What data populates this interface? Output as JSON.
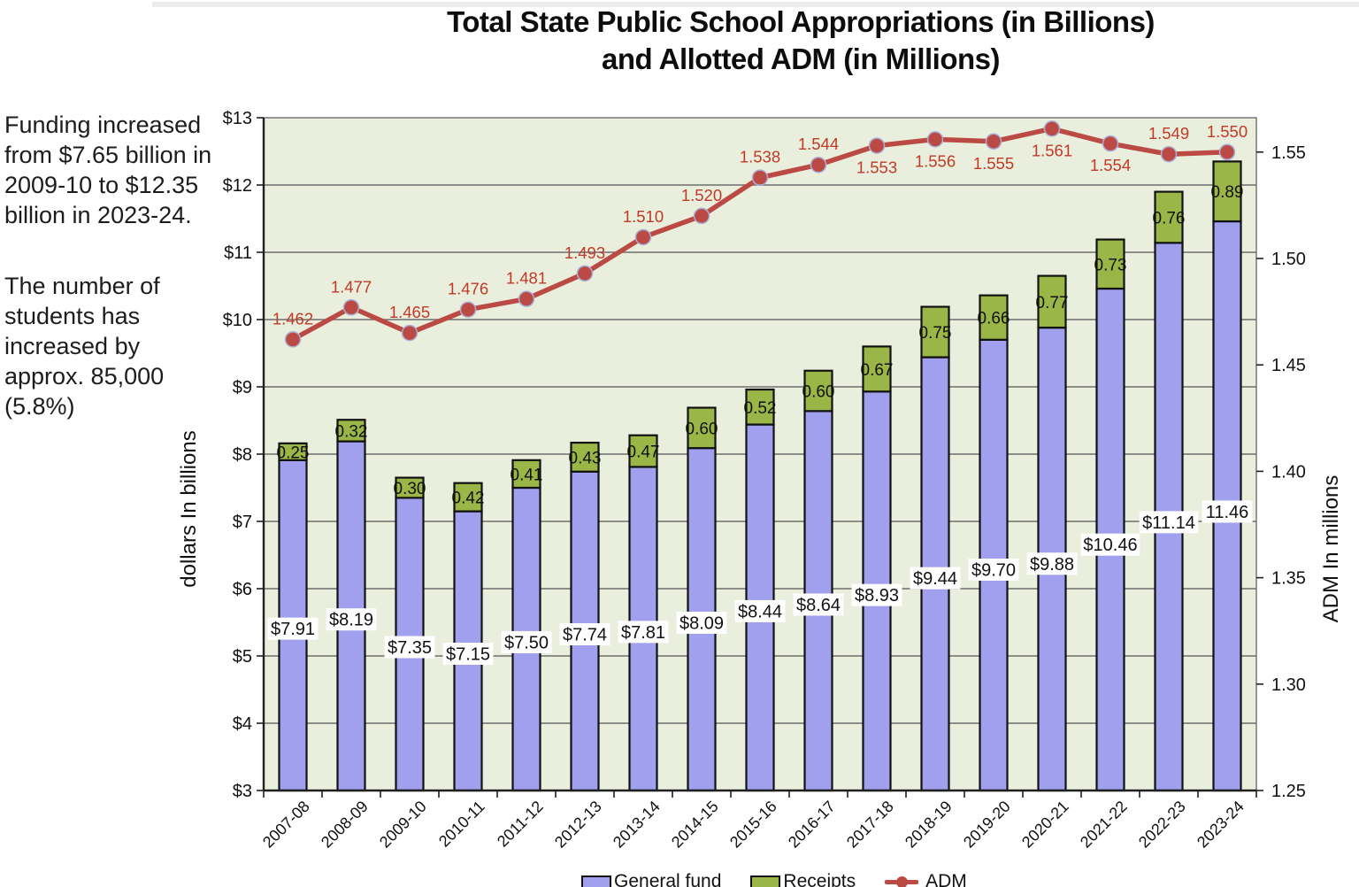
{
  "page": {
    "title_line1": "Total State Public School Appropriations (in Billions)",
    "title_line2": "and Allotted ADM (in Millions)"
  },
  "sidebar": {
    "note1": "Funding increased from $7.65 billion in 2009-10 to $12.35 billion in 2023-24.",
    "note2": "The number of students has increased by approx. 85,000 (5.8%)"
  },
  "chart_data": {
    "type": "bar",
    "subtype": "stacked-bars-with-line",
    "title": "Total State Public School Appropriations (in Billions) and Allotted ADM (in Millions)",
    "categories": [
      "2007-08",
      "2008-09",
      "2009-10",
      "2010-11",
      "2011-12",
      "2012-13",
      "2013-14",
      "2014-15",
      "2015-16",
      "2016-17",
      "2017-18",
      "2018-19",
      "2019-20",
      "2020-21",
      "2021-22",
      "2022-23",
      "2023-24"
    ],
    "series": [
      {
        "name": "General fund",
        "type": "bar",
        "stack": "total",
        "axis": "left",
        "color": "#a0a0ee",
        "values": [
          7.91,
          8.19,
          7.35,
          7.15,
          7.5,
          7.74,
          7.81,
          8.09,
          8.44,
          8.64,
          8.93,
          9.44,
          9.7,
          9.88,
          10.46,
          11.14,
          11.46
        ],
        "labels": [
          "$7.91",
          "$8.19",
          "$7.35",
          "$7.15",
          "$7.50",
          "$7.74",
          "$7.81",
          "$8.09",
          "$8.44",
          "$8.64",
          "$8.93",
          "$9.44",
          "$9.70",
          "$9.88",
          "$10.46",
          "$11.14",
          "11.46"
        ]
      },
      {
        "name": "Receipts",
        "type": "bar",
        "stack": "total",
        "axis": "left",
        "color": "#9ab647",
        "values": [
          0.25,
          0.32,
          0.3,
          0.42,
          0.41,
          0.43,
          0.47,
          0.6,
          0.52,
          0.6,
          0.67,
          0.75,
          0.66,
          0.77,
          0.73,
          0.76,
          0.89
        ],
        "labels": [
          "0.25",
          "0.32",
          "0.30",
          "0.42",
          "0.41",
          "0.43",
          "0.47",
          "0.60",
          "0.52",
          "0.60",
          "0.67",
          "0.75",
          "0.66",
          "0.77",
          "0.73",
          "0.76",
          "0.89"
        ]
      },
      {
        "name": "ADM",
        "type": "line",
        "axis": "right",
        "color": "#bc4a44",
        "label_color": "#c03a28",
        "values": [
          1.462,
          1.477,
          1.465,
          1.476,
          1.481,
          1.493,
          1.51,
          1.52,
          1.538,
          1.544,
          1.553,
          1.556,
          1.555,
          1.561,
          1.554,
          1.549,
          1.55
        ],
        "labels": [
          "1.462",
          "1.477",
          "1.465",
          "1.476",
          "1.481",
          "1.493",
          "1.510",
          "1.520",
          "1.538",
          "1.544",
          "1.553",
          "1.556",
          "1.555",
          "1.561",
          "1.554",
          "1.549",
          "1.550"
        ],
        "label_side": [
          "above",
          "above",
          "above",
          "above",
          "above",
          "above",
          "above",
          "above",
          "above",
          "above",
          "below",
          "below",
          "below",
          "below",
          "below",
          "above",
          "above"
        ]
      }
    ],
    "left_axis": {
      "title": "dollars In billions",
      "min": 3,
      "max": 13,
      "step": 1,
      "tick_prefix": "$"
    },
    "right_axis": {
      "title": "ADM In millions",
      "min": 1.25,
      "max": 1.55,
      "step": 0.05,
      "tick_decimals": 2
    },
    "legend": [
      "General fund",
      "Receipts",
      "ADM"
    ],
    "legend_position": "bottom",
    "grid": "horizontal",
    "plot_bg": "#eaeedc",
    "grid_color": "#6e6e6e",
    "axis_color": "#1f1f1f",
    "bar_border_color": "#111111"
  }
}
